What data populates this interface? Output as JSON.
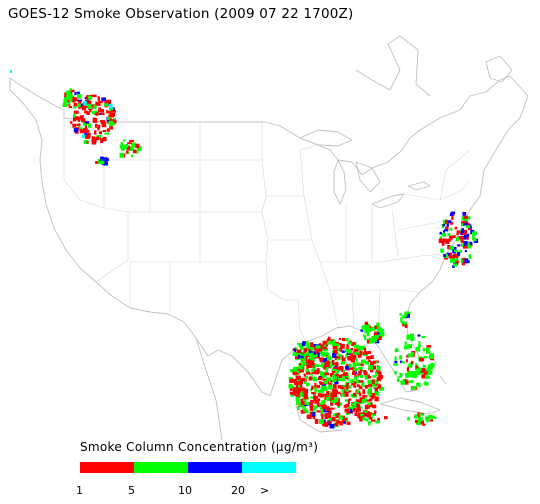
{
  "title": "GOES-12 Smoke Observation (2009 07 22  1700Z)",
  "legend": {
    "title": "Smoke Column Concentration (μg/m³)",
    "colors": [
      "#ff0000",
      "#00ff00",
      "#0000ff",
      "#00ffff"
    ],
    "ticks": [
      "1",
      "5",
      "10",
      "20",
      ">"
    ]
  },
  "colors": {
    "land_outline": "#c0c0c0",
    "state_lines": "#d8d8d8",
    "background": "#ffffff"
  }
}
